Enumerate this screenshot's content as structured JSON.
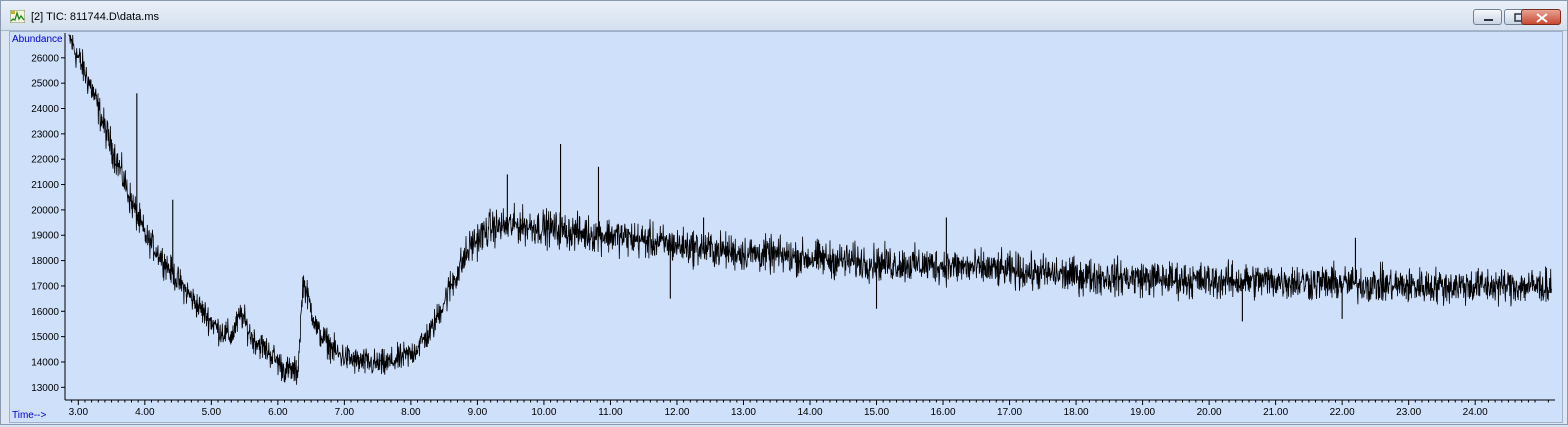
{
  "window": {
    "title": "[2] TIC: 811744.D\\data.ms",
    "icons": [
      "app-chromatogram-icon",
      "minimize-icon",
      "restore-icon",
      "close-icon"
    ]
  },
  "colors": {
    "plot_background": "#cfe0fb",
    "trace": "#000000",
    "axis_label": "#0000cc"
  },
  "chart_data": {
    "type": "line",
    "title": "",
    "xlabel": "Time-->",
    "ylabel": "Abundance",
    "xlim": [
      2.8,
      25.2
    ],
    "ylim": [
      12500,
      26900
    ],
    "x_ticks": [
      "3.00",
      "4.00",
      "5.00",
      "6.00",
      "7.00",
      "8.00",
      "9.00",
      "10.00",
      "11.00",
      "12.00",
      "13.00",
      "14.00",
      "15.00",
      "16.00",
      "17.00",
      "18.00",
      "19.00",
      "20.00",
      "21.00",
      "22.00",
      "23.00",
      "24.00"
    ],
    "y_ticks": [
      "13000",
      "14000",
      "15000",
      "16000",
      "17000",
      "18000",
      "19000",
      "20000",
      "21000",
      "22000",
      "23000",
      "24000",
      "25000",
      "26000"
    ],
    "grid": false,
    "legend": "none",
    "series": [
      {
        "baseline_trend": [
          {
            "x": 2.85,
            "y": 26900
          },
          {
            "x": 3.0,
            "y": 26000
          },
          {
            "x": 3.2,
            "y": 24800
          },
          {
            "x": 3.4,
            "y": 23200
          },
          {
            "x": 3.6,
            "y": 21800
          },
          {
            "x": 3.8,
            "y": 20300
          },
          {
            "x": 4.0,
            "y": 19000
          },
          {
            "x": 4.2,
            "y": 18300
          },
          {
            "x": 4.5,
            "y": 17200
          },
          {
            "x": 4.8,
            "y": 16200
          },
          {
            "x": 5.1,
            "y": 15300
          },
          {
            "x": 5.3,
            "y": 15000
          },
          {
            "x": 5.45,
            "y": 15900
          },
          {
            "x": 5.6,
            "y": 15000
          },
          {
            "x": 5.9,
            "y": 14300
          },
          {
            "x": 6.1,
            "y": 13700
          },
          {
            "x": 6.3,
            "y": 13600
          },
          {
            "x": 6.38,
            "y": 17200
          },
          {
            "x": 6.6,
            "y": 15200
          },
          {
            "x": 6.9,
            "y": 14300
          },
          {
            "x": 7.2,
            "y": 14000
          },
          {
            "x": 7.6,
            "y": 13900
          },
          {
            "x": 8.0,
            "y": 14300
          },
          {
            "x": 8.3,
            "y": 15200
          },
          {
            "x": 8.6,
            "y": 17000
          },
          {
            "x": 8.9,
            "y": 18600
          },
          {
            "x": 9.2,
            "y": 19300
          },
          {
            "x": 9.6,
            "y": 19400
          },
          {
            "x": 10.0,
            "y": 19300
          },
          {
            "x": 10.5,
            "y": 19100
          },
          {
            "x": 11.0,
            "y": 19000
          },
          {
            "x": 11.5,
            "y": 18800
          },
          {
            "x": 12.0,
            "y": 18600
          },
          {
            "x": 13.0,
            "y": 18300
          },
          {
            "x": 14.0,
            "y": 18100
          },
          {
            "x": 15.0,
            "y": 17900
          },
          {
            "x": 16.0,
            "y": 17800
          },
          {
            "x": 17.0,
            "y": 17600
          },
          {
            "x": 18.0,
            "y": 17400
          },
          {
            "x": 19.0,
            "y": 17300
          },
          {
            "x": 20.0,
            "y": 17200
          },
          {
            "x": 21.0,
            "y": 17200
          },
          {
            "x": 22.0,
            "y": 17100
          },
          {
            "x": 23.0,
            "y": 17000
          },
          {
            "x": 24.0,
            "y": 17000
          },
          {
            "x": 25.15,
            "y": 17000
          }
        ],
        "spikes": [
          {
            "x": 3.88,
            "y": 24600
          },
          {
            "x": 4.42,
            "y": 20400
          },
          {
            "x": 9.45,
            "y": 21400
          },
          {
            "x": 10.25,
            "y": 22600
          },
          {
            "x": 10.82,
            "y": 21700
          },
          {
            "x": 11.9,
            "y": 16500
          },
          {
            "x": 12.4,
            "y": 19700
          },
          {
            "x": 15.0,
            "y": 16100
          },
          {
            "x": 16.05,
            "y": 19700
          },
          {
            "x": 20.5,
            "y": 15600
          },
          {
            "x": 22.2,
            "y": 18900
          },
          {
            "x": 22.0,
            "y": 15700
          }
        ]
      }
    ]
  }
}
